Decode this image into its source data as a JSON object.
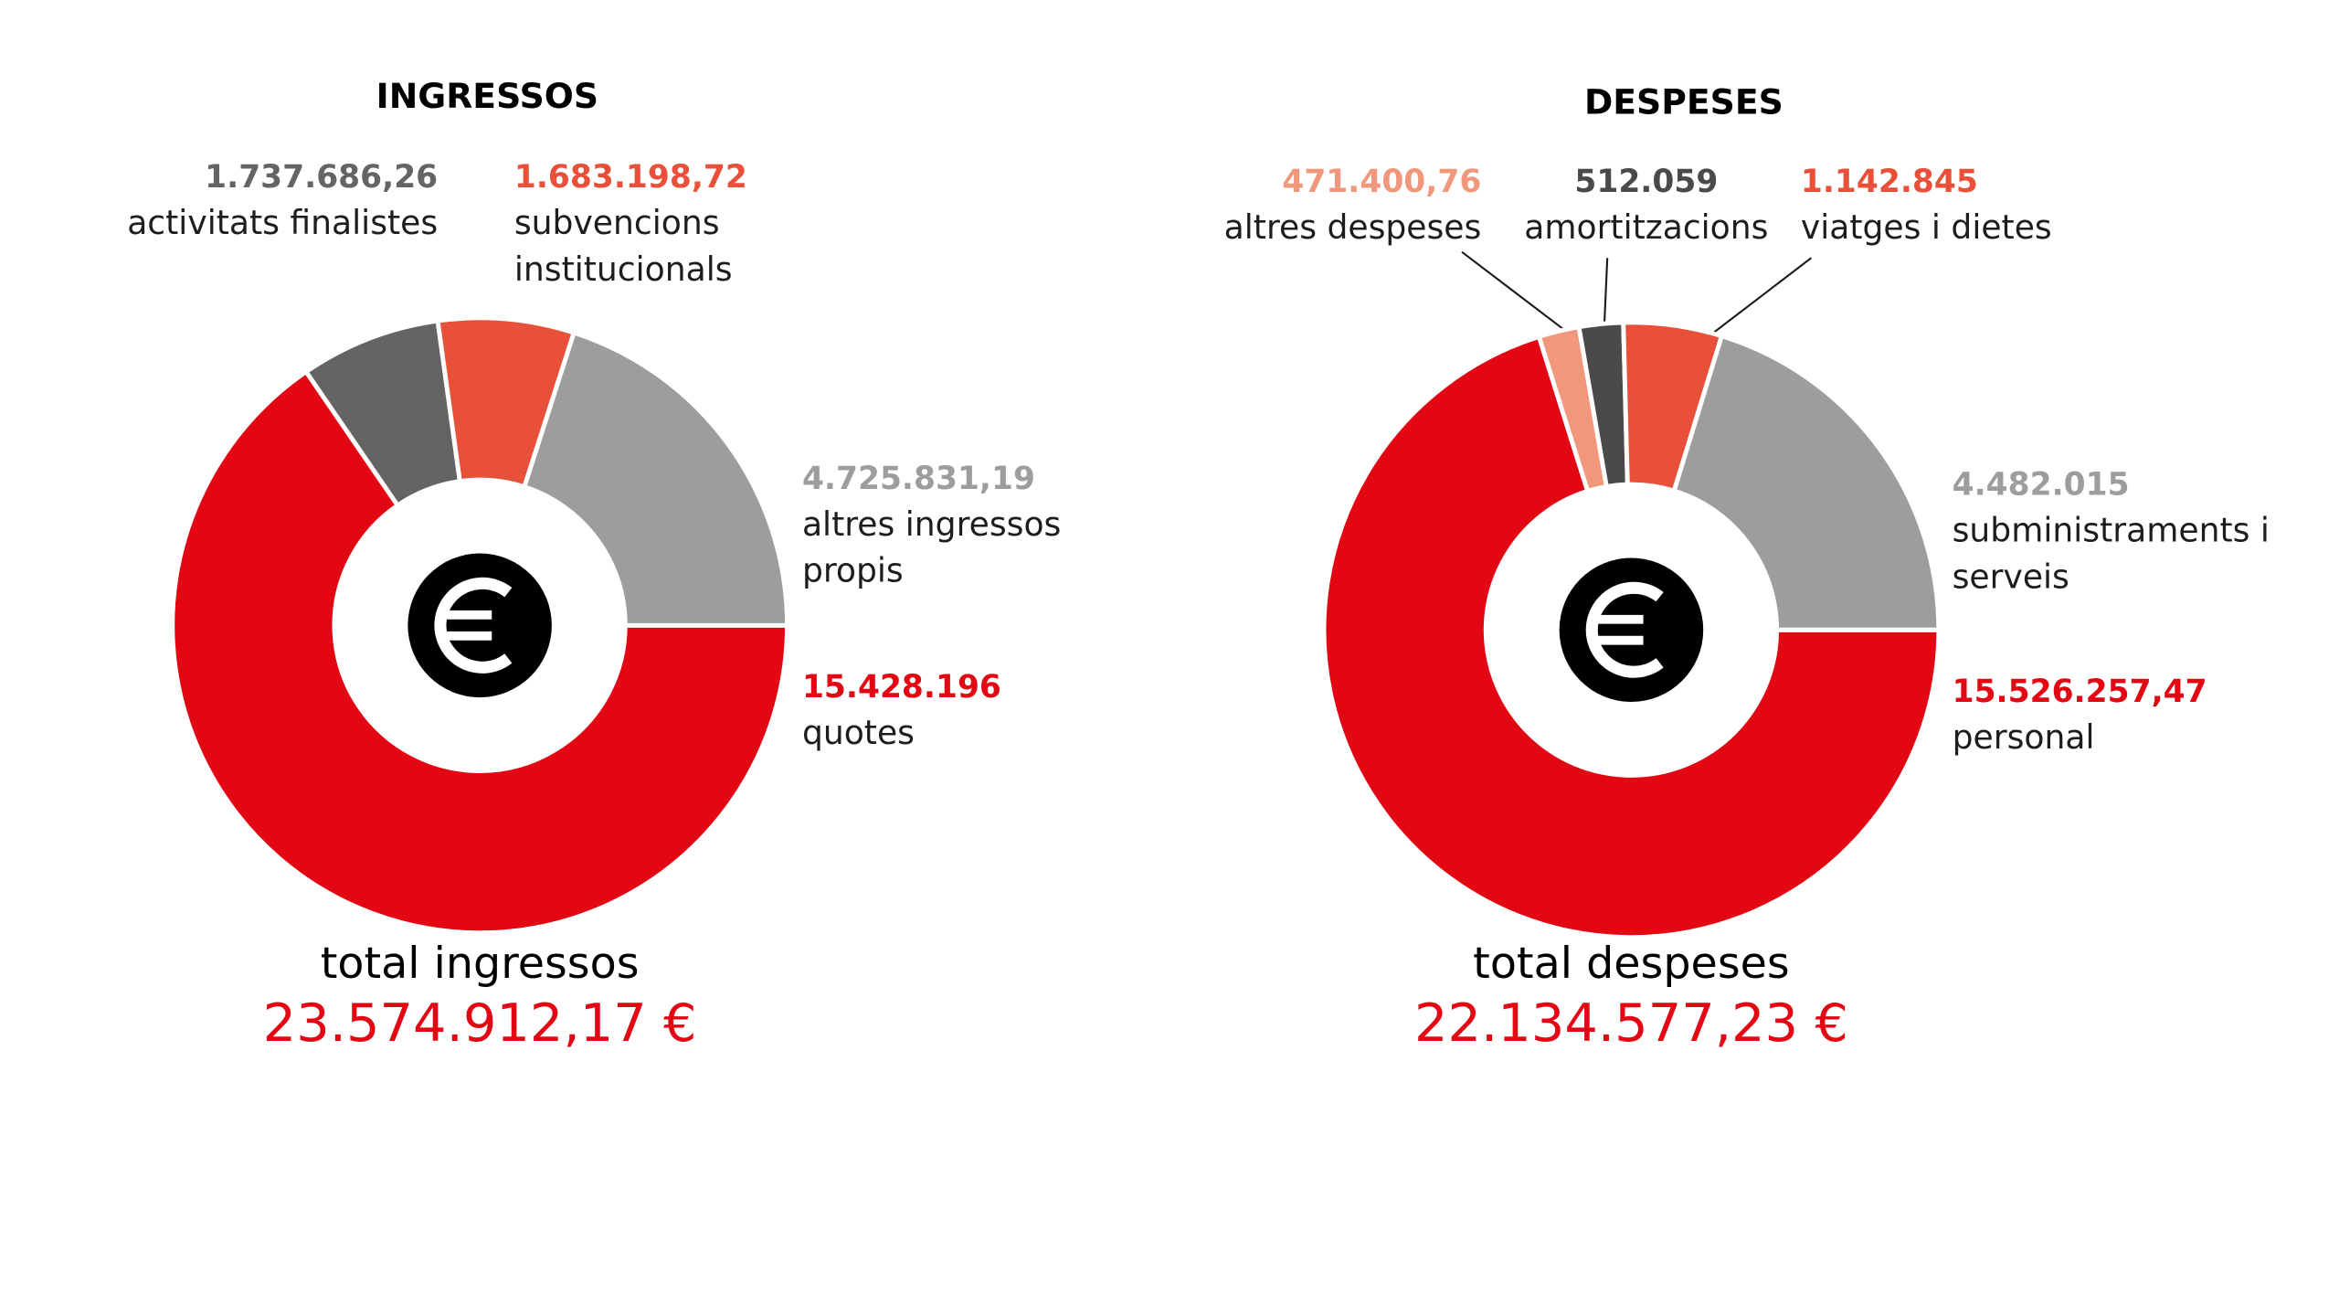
{
  "chart_data": [
    {
      "type": "pie",
      "title": "INGRESSOS",
      "categories": [
        "quotes",
        "activitats finalistes",
        "subvencions institucionals",
        "altres ingressos propis"
      ],
      "values": [
        15428196,
        1737686.26,
        1683198.72,
        4725831.19
      ],
      "value_labels": [
        "15.428.196",
        "1.737.686,26",
        "1.683.198,72",
        "4.725.831,19"
      ],
      "colors": [
        "#e30613",
        "#646464",
        "#e8503a",
        "#9d9d9c"
      ],
      "total_title": "total ingressos",
      "total": {
        "value": 23574912.17,
        "label": "23.574.912,17 €"
      }
    },
    {
      "type": "pie",
      "title": "DESPESES",
      "categories": [
        "personal",
        "altres despeses",
        "amortitzacions",
        "viatges i dietes",
        "subministraments i serveis"
      ],
      "values": [
        15526257.47,
        471400.76,
        512059,
        1142845,
        4482015
      ],
      "value_labels": [
        "15.526.257,47",
        "471.400,76",
        "512.059",
        "1.142.845",
        "4.482.015"
      ],
      "colors": [
        "#e30613",
        "#f0977c",
        "#4a4a4a",
        "#e8503a",
        "#9d9d9c"
      ],
      "total_title": "total despeses",
      "total": {
        "value": 22134577.23,
        "label": "22.134.577,23 €"
      }
    }
  ]
}
